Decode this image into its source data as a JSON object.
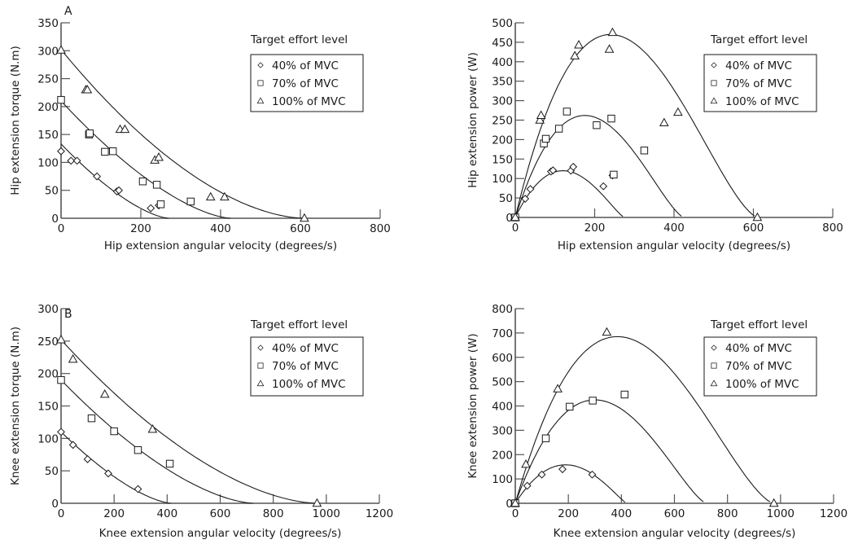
{
  "colors": {
    "ink": "#1a1a1a",
    "axis": "#555555",
    "background": "#ffffff"
  },
  "chart_data": [
    {
      "id": "hip-torque",
      "type": "scatter",
      "panel_label": "A",
      "xlabel": "Hip extension angular velocity (degrees/s)",
      "ylabel": "Hip extension torque (N.m)",
      "xlim": [
        0,
        800
      ],
      "ylim": [
        0,
        350
      ],
      "xticks": [
        "0",
        "200",
        "400",
        "600",
        "800"
      ],
      "yticks": [
        "0",
        "50",
        "100",
        "150",
        "200",
        "250",
        "300",
        "350"
      ],
      "legend": {
        "title": "Target effort level",
        "placement": "top-right"
      },
      "fit": "torque",
      "series": [
        {
          "name": "40% of MVC",
          "marker": "diamond",
          "fit_t0": 133,
          "fit_vmax": 270,
          "fit_k": 1.5,
          "points": [
            [
              0,
              120
            ],
            [
              25,
              103
            ],
            [
              40,
              103
            ],
            [
              90,
              75
            ],
            [
              140,
              48
            ],
            [
              145,
              50
            ],
            [
              225,
              18
            ],
            [
              245,
              23
            ]
          ]
        },
        {
          "name": "70% of MVC",
          "marker": "square",
          "fit_t0": 210,
          "fit_vmax": 425,
          "fit_k": 1.55,
          "points": [
            [
              0,
              212
            ],
            [
              70,
              150
            ],
            [
              72,
              152
            ],
            [
              110,
              119
            ],
            [
              130,
              120
            ],
            [
              205,
              66
            ],
            [
              240,
              60
            ],
            [
              250,
              25
            ],
            [
              325,
              30
            ]
          ]
        },
        {
          "name": "100% of MVC",
          "marker": "triangle",
          "fit_t0": 302,
          "fit_vmax": 610,
          "fit_k": 1.75,
          "points": [
            [
              0,
              301
            ],
            [
              62,
              230
            ],
            [
              66,
              230
            ],
            [
              148,
              159
            ],
            [
              160,
              159
            ],
            [
              235,
              104
            ],
            [
              245,
              109
            ],
            [
              375,
              38
            ],
            [
              410,
              38
            ],
            [
              610,
              0
            ]
          ]
        }
      ]
    },
    {
      "id": "hip-power",
      "type": "scatter",
      "panel_label": "",
      "xlabel": "Hip extension angular velocity (degrees/s)",
      "ylabel": "Hip extension power (W)",
      "xlim": [
        0,
        800
      ],
      "ylim": [
        0,
        500
      ],
      "xticks": [
        "0",
        "200",
        "400",
        "600",
        "800"
      ],
      "yticks": [
        "0",
        "50",
        "100",
        "150",
        "200",
        "250",
        "300",
        "350",
        "400",
        "450",
        "500"
      ],
      "legend": {
        "title": "Target effort level",
        "placement": "top-right"
      },
      "fit": "power",
      "series": [
        {
          "name": "40% of MVC",
          "marker": "diamond",
          "fit_peak_v": 120,
          "fit_peak_p": 120,
          "fit_vmax": 275,
          "points": [
            [
              0,
              0
            ],
            [
              25,
              48
            ],
            [
              38,
              73
            ],
            [
              90,
              118
            ],
            [
              95,
              121
            ],
            [
              140,
              120
            ],
            [
              146,
              130
            ],
            [
              222,
              80
            ],
            [
              245,
              108
            ]
          ]
        },
        {
          "name": "70% of MVC",
          "marker": "square",
          "fit_peak_v": 175,
          "fit_peak_p": 262,
          "fit_vmax": 425,
          "points": [
            [
              0,
              0
            ],
            [
              72,
              190
            ],
            [
              77,
              202
            ],
            [
              110,
              228
            ],
            [
              130,
              272
            ],
            [
              205,
              237
            ],
            [
              242,
              254
            ],
            [
              248,
              110
            ],
            [
              325,
              172
            ]
          ]
        },
        {
          "name": "100% of MVC",
          "marker": "triangle",
          "fit_peak_v": 240,
          "fit_peak_p": 470,
          "fit_vmax": 612,
          "points": [
            [
              0,
              0
            ],
            [
              62,
              250
            ],
            [
              65,
              262
            ],
            [
              150,
              415
            ],
            [
              160,
              443
            ],
            [
              237,
              432
            ],
            [
              245,
              475
            ],
            [
              375,
              243
            ],
            [
              410,
              270
            ],
            [
              610,
              0
            ]
          ]
        }
      ]
    },
    {
      "id": "knee-torque",
      "type": "scatter",
      "panel_label": "B",
      "xlabel": "Knee extension angular velocity (degrees/s)",
      "ylabel": "Knee extension torque (N.m)",
      "xlim": [
        0,
        1200
      ],
      "ylim": [
        0,
        300
      ],
      "xticks": [
        "0",
        "200",
        "400",
        "600",
        "800",
        "1000",
        "1200"
      ],
      "yticks": [
        "0",
        "50",
        "100",
        "150",
        "200",
        "250",
        "300"
      ],
      "legend": {
        "title": "Target effort level",
        "placement": "top-right"
      },
      "fit": "torque",
      "series": [
        {
          "name": "40% of MVC",
          "marker": "diamond",
          "fit_t0": 110,
          "fit_vmax": 415,
          "fit_k": 1.5,
          "points": [
            [
              0,
              110
            ],
            [
              45,
              90
            ],
            [
              100,
              68
            ],
            [
              178,
              46
            ],
            [
              290,
              22
            ]
          ]
        },
        {
          "name": "70% of MVC",
          "marker": "square",
          "fit_t0": 190,
          "fit_vmax": 725,
          "fit_k": 1.6,
          "points": [
            [
              0,
              190
            ],
            [
              115,
              131
            ],
            [
              200,
              111
            ],
            [
              290,
              82
            ],
            [
              410,
              61
            ]
          ]
        },
        {
          "name": "100% of MVC",
          "marker": "triangle",
          "fit_t0": 252,
          "fit_vmax": 965,
          "fit_k": 1.7,
          "points": [
            [
              0,
              252
            ],
            [
              45,
              222
            ],
            [
              165,
              168
            ],
            [
              345,
              114
            ],
            [
              965,
              0
            ]
          ]
        }
      ]
    },
    {
      "id": "knee-power",
      "type": "scatter",
      "panel_label": "",
      "xlabel": "Knee extension angular velocity (degrees/s)",
      "ylabel": "Knee extension power (W)",
      "xlim": [
        0,
        1200
      ],
      "ylim": [
        0,
        800
      ],
      "xticks": [
        "0",
        "200",
        "400",
        "600",
        "800",
        "1000",
        "1200"
      ],
      "yticks": [
        "0",
        "100",
        "200",
        "300",
        "400",
        "500",
        "600",
        "700",
        "800"
      ],
      "legend": {
        "title": "Target effort level",
        "placement": "top-right"
      },
      "fit": "power",
      "series": [
        {
          "name": "40% of MVC",
          "marker": "diamond",
          "fit_peak_v": 190,
          "fit_peak_p": 158,
          "fit_vmax": 420,
          "points": [
            [
              0,
              0
            ],
            [
              45,
              72
            ],
            [
              100,
              118
            ],
            [
              178,
              140
            ],
            [
              290,
              118
            ]
          ]
        },
        {
          "name": "70% of MVC",
          "marker": "square",
          "fit_peak_v": 300,
          "fit_peak_p": 425,
          "fit_vmax": 720,
          "points": [
            [
              0,
              0
            ],
            [
              115,
              267
            ],
            [
              205,
              397
            ],
            [
              292,
              422
            ],
            [
              412,
              447
            ]
          ]
        },
        {
          "name": "100% of MVC",
          "marker": "triangle",
          "fit_peak_v": 385,
          "fit_peak_p": 685,
          "fit_vmax": 975,
          "points": [
            [
              0,
              0
            ],
            [
              40,
              160
            ],
            [
              160,
              470
            ],
            [
              345,
              703
            ],
            [
              975,
              0
            ]
          ]
        }
      ]
    }
  ]
}
